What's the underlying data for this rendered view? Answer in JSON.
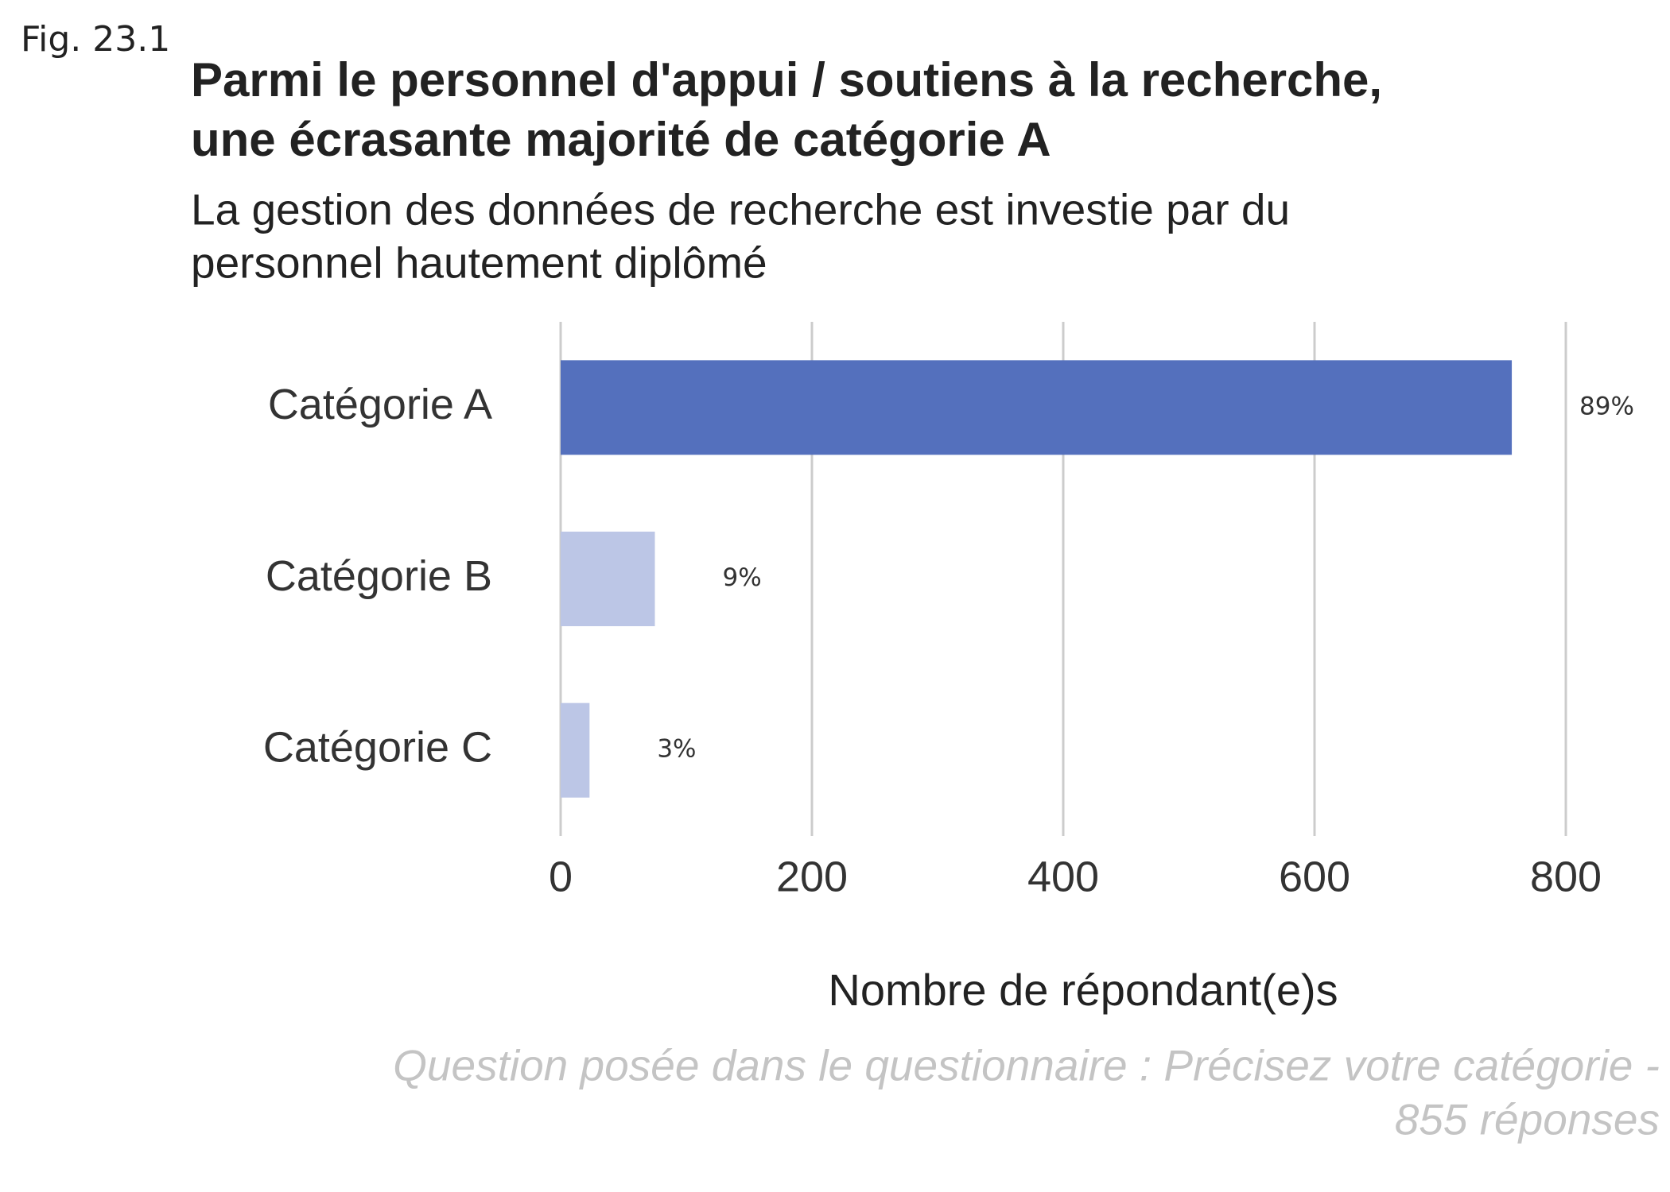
{
  "chart_data": {
    "type": "hbar",
    "figure_label": "Fig. 23.1",
    "title": [
      "Parmi le personnel d'appui / soutiens à la recherche,",
      "une écrasante majorité de catégorie A"
    ],
    "subtitle": [
      "La gestion des données de recherche est investie par du",
      "personnel hautement diplômé"
    ],
    "categories": [
      "Catégorie A",
      "Catégorie B",
      "Catégorie C"
    ],
    "values": [
      757,
      75,
      23
    ],
    "value_labels": [
      "89%",
      "9%",
      "3%"
    ],
    "colors": [
      "#5470bd",
      "#bcc6e6",
      "#bcc6e6"
    ],
    "xlim": [
      0,
      800
    ],
    "xticks": [
      0,
      200,
      400,
      600,
      800
    ],
    "grid": true,
    "xlabel": "Nombre de répondant(e)s",
    "caption": [
      "Question posée dans le questionnaire : Précisez votre catégorie -",
      "855 réponses"
    ]
  }
}
